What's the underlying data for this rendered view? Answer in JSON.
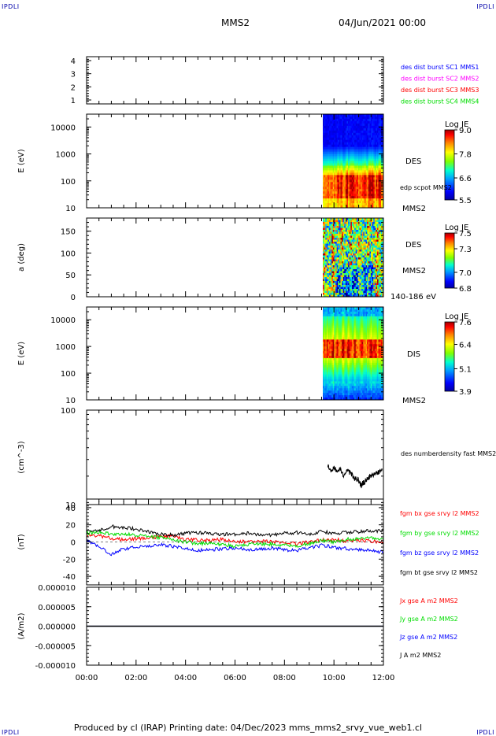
{
  "header": {
    "corner_left": "IPDLI",
    "corner_right": "IPDLI",
    "spacecraft": "MMS2",
    "date": "04/Jun/2021 00:00"
  },
  "footer": {
    "corner_left": "IPDLI",
    "corner_right": "IPDLI",
    "text": "Produced by cl (IRAP)   Printing date: 04/Dec/2023   mms_mms2_srvy_vue_web1.cl"
  },
  "colors": {
    "blue": "#0000ff",
    "magenta": "#ff00ff",
    "red": "#ff0000",
    "green": "#00dd00",
    "black": "#000000"
  },
  "chart_data": [
    {
      "type": "line",
      "panel": "burst-availability",
      "yticks": [
        "1",
        "2",
        "3",
        "4"
      ],
      "ylim": [
        0.7,
        4.3
      ],
      "legend": [
        {
          "text": "des dist burst SC1 MMS1",
          "color": "blue"
        },
        {
          "text": "des dist burst SC2 MMS2",
          "color": "magenta"
        },
        {
          "text": "des dist burst SC3 MMS3",
          "color": "red"
        },
        {
          "text": "des dist burst SC4 MMS4",
          "color": "green"
        }
      ]
    },
    {
      "type": "heatmap",
      "panel": "des-energy-spectrogram",
      "ylabel": "E (eV)",
      "yscale": "log",
      "yticks": [
        "10",
        "100",
        "1000",
        "10000"
      ],
      "ylim": [
        10,
        30000
      ],
      "data_start_hour": 9.55,
      "annotations": [
        "DES",
        "edp scpot MMS2",
        "MMS2"
      ],
      "colorbar": {
        "title": "Log JE",
        "ticks": [
          "9.0",
          "7.8",
          "6.6",
          "5.5"
        ],
        "range": [
          5.5,
          9.0
        ]
      }
    },
    {
      "type": "heatmap",
      "panel": "des-pitch-angle",
      "ylabel": "a (deg)",
      "yticks": [
        "0",
        "50",
        "100",
        "150"
      ],
      "ylim": [
        0,
        180
      ],
      "data_start_hour": 9.55,
      "annotations": [
        "DES",
        "MMS2",
        "140-186 eV"
      ],
      "colorbar": {
        "title": "Log JE",
        "ticks": [
          "7.5",
          "7.3",
          "7.0",
          "6.8"
        ],
        "range": [
          6.8,
          7.5
        ]
      }
    },
    {
      "type": "heatmap",
      "panel": "dis-energy-spectrogram",
      "ylabel": "E (eV)",
      "yscale": "log",
      "yticks": [
        "10",
        "100",
        "1000",
        "10000"
      ],
      "ylim": [
        10,
        30000
      ],
      "data_start_hour": 9.55,
      "annotations": [
        "DIS",
        "MMS2"
      ],
      "colorbar": {
        "title": "Log JE",
        "ticks": [
          "7.6",
          "6.4",
          "5.1",
          "3.9"
        ],
        "range": [
          3.9,
          7.6
        ]
      }
    },
    {
      "type": "line",
      "panel": "density",
      "ylabel": "(cm^-3)",
      "yscale": "log",
      "yticks": [
        "10",
        "100"
      ],
      "ylim": [
        10,
        100
      ],
      "series": [
        {
          "name": "des numberdensity fast MMS2",
          "color": "black",
          "x": [
            9.75,
            9.9,
            10.0,
            10.1,
            10.25,
            10.4,
            10.55,
            10.7,
            10.85,
            11.0,
            11.1,
            11.2,
            11.35,
            11.5,
            11.65,
            11.8,
            11.95
          ],
          "values": [
            26,
            22,
            25,
            23,
            24,
            20,
            23,
            21,
            19,
            18,
            16,
            17,
            19,
            20,
            21,
            22,
            24
          ]
        }
      ]
    },
    {
      "type": "line",
      "panel": "magnetic-field",
      "ylabel": "(nT)",
      "yticks": [
        "-40",
        "-20",
        "0",
        "20",
        "40"
      ],
      "ylim": [
        -50,
        50
      ],
      "series": [
        {
          "name": "fgm bx gse srvy l2 MMS2",
          "color": "red",
          "x": [
            0,
            0.5,
            1,
            1.5,
            2,
            2.5,
            3,
            3.5,
            4,
            4.5,
            5,
            5.5,
            6,
            6.5,
            7,
            7.5,
            8,
            8.5,
            9,
            9.5,
            10,
            10.5,
            11,
            11.5,
            12
          ],
          "values": [
            8,
            7,
            4,
            3,
            4,
            5,
            6,
            7,
            3,
            2,
            2,
            3,
            1,
            0,
            1,
            0,
            -1,
            -2,
            0,
            2,
            3,
            1,
            2,
            1,
            0
          ]
        },
        {
          "name": "fgm by gse srvy l2 MMS2",
          "color": "green",
          "x": [
            0,
            0.5,
            1,
            1.5,
            2,
            2.5,
            3,
            3.5,
            4,
            4.5,
            5,
            5.5,
            6,
            6.5,
            7,
            7.5,
            8,
            8.5,
            9,
            9.5,
            10,
            10.5,
            11,
            11.5,
            12
          ],
          "values": [
            10,
            12,
            9,
            9,
            8,
            6,
            5,
            2,
            0,
            -2,
            -1,
            -3,
            -5,
            -3,
            -2,
            -3,
            -4,
            -5,
            -2,
            2,
            0,
            3,
            4,
            5,
            3
          ]
        },
        {
          "name": "fgm bz gse srvy l2 MMS2",
          "color": "blue",
          "x": [
            0,
            0.5,
            1,
            1.5,
            2,
            2.5,
            3,
            3.5,
            4,
            4.5,
            5,
            5.5,
            6,
            6.5,
            7,
            7.5,
            8,
            8.5,
            9,
            9.5,
            10,
            10.5,
            11,
            11.5,
            12
          ],
          "values": [
            2,
            -5,
            -14,
            -8,
            -6,
            -5,
            -3,
            -5,
            -8,
            -10,
            -9,
            -8,
            -7,
            -9,
            -8,
            -7,
            -9,
            -10,
            -7,
            -4,
            -6,
            -8,
            -9,
            -10,
            -12
          ]
        },
        {
          "name": "fgm bt gse srvy l2 MMS2",
          "color": "black",
          "x": [
            0,
            0.5,
            1,
            1.5,
            2,
            2.5,
            3,
            3.5,
            4,
            4.5,
            5,
            5.5,
            6,
            6.5,
            7,
            7.5,
            8,
            8.5,
            9,
            9.5,
            10,
            10.5,
            11,
            11.5,
            12
          ],
          "values": [
            14,
            13,
            18,
            17,
            15,
            12,
            9,
            8,
            10,
            11,
            10,
            9,
            9,
            10,
            9,
            8,
            10,
            11,
            9,
            12,
            10,
            11,
            12,
            13,
            13
          ]
        }
      ]
    },
    {
      "type": "line",
      "panel": "current-density",
      "ylabel": "(A/m2)",
      "yticks": [
        "-0.000010",
        "-0.000005",
        "0.000000",
        "0.000005",
        "0.000010"
      ],
      "ylim": [
        -1e-05,
        1e-05
      ],
      "series": [
        {
          "name": "Jx gse A m2 MMS2",
          "color": "red",
          "x": [
            0,
            12
          ],
          "values": [
            0,
            0
          ]
        },
        {
          "name": "Jy gse A m2 MMS2",
          "color": "green",
          "x": [
            0,
            12
          ],
          "values": [
            0,
            0
          ]
        },
        {
          "name": "Jz gse A m2 MMS2",
          "color": "blue",
          "x": [
            0,
            12
          ],
          "values": [
            0,
            0
          ]
        },
        {
          "name": "J A m2 MMS2",
          "color": "black",
          "x": [
            0,
            12
          ],
          "values": [
            0,
            0
          ]
        }
      ]
    }
  ],
  "xaxis": {
    "ticks": [
      "00:00",
      "02:00",
      "04:00",
      "06:00",
      "08:00",
      "10:00",
      "12:00"
    ],
    "xlim": [
      0,
      12
    ]
  }
}
